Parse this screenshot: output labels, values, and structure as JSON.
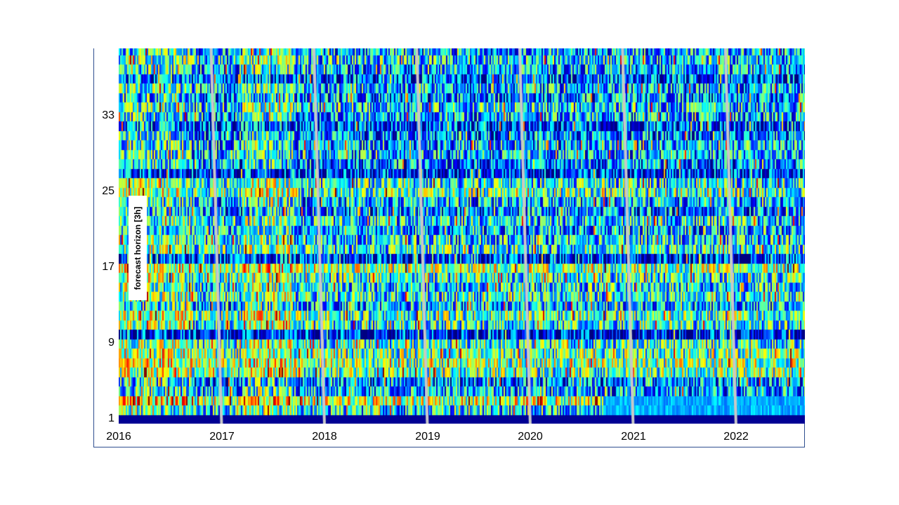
{
  "chart_data": {
    "type": "heatmap",
    "title": "",
    "xlabel": "",
    "ylabel": "forecast horizon [3h]",
    "x_ticks": [
      "2016",
      "2017",
      "2018",
      "2019",
      "2020",
      "2021",
      "2022"
    ],
    "x_range": [
      2016.0,
      2022.67
    ],
    "y_ticks": [
      "1",
      "9",
      "17",
      "25",
      "33"
    ],
    "y_range": [
      1,
      40
    ],
    "colormap": "jet",
    "value_range": [
      0,
      1
    ],
    "row_mean_intensity": [
      0.0,
      0.35,
      0.55,
      0.3,
      0.25,
      0.45,
      0.5,
      0.45,
      0.4,
      0.1,
      0.4,
      0.45,
      0.3,
      0.4,
      0.35,
      0.4,
      0.5,
      0.15,
      0.4,
      0.35,
      0.3,
      0.35,
      0.25,
      0.3,
      0.45,
      0.4,
      0.15,
      0.25,
      0.3,
      0.3,
      0.25,
      0.2,
      0.3,
      0.35,
      0.25,
      0.3,
      0.2,
      0.3,
      0.35,
      0.3
    ],
    "year_boundary_lines": [
      "2017",
      "2018",
      "2019",
      "2020",
      "2021",
      "2022"
    ],
    "year_boundary_line_color": "#c8c8c8"
  }
}
